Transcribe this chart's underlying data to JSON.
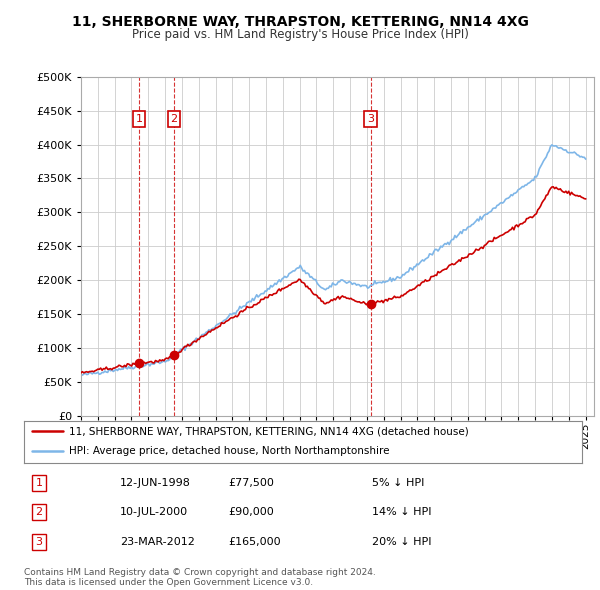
{
  "title": "11, SHERBORNE WAY, THRAPSTON, KETTERING, NN14 4XG",
  "subtitle": "Price paid vs. HM Land Registry's House Price Index (HPI)",
  "ytick_values": [
    0,
    50000,
    100000,
    150000,
    200000,
    250000,
    300000,
    350000,
    400000,
    450000,
    500000
  ],
  "ylim": [
    0,
    500000
  ],
  "xlim_start": 1995,
  "xlim_end": 2025.5,
  "hpi_color": "#7EB6E8",
  "price_color": "#CC0000",
  "background_color": "#ffffff",
  "grid_color": "#cccccc",
  "transactions": [
    {
      "year": 1998.44,
      "price": 77500,
      "label": "1"
    },
    {
      "year": 2000.52,
      "price": 90000,
      "label": "2"
    },
    {
      "year": 2012.22,
      "price": 165000,
      "label": "3"
    }
  ],
  "legend_line1": "11, SHERBORNE WAY, THRAPSTON, KETTERING, NN14 4XG (detached house)",
  "legend_line2": "HPI: Average price, detached house, North Northamptonshire",
  "footnote": "Contains HM Land Registry data © Crown copyright and database right 2024.\nThis data is licensed under the Open Government Licence v3.0.",
  "table_rows": [
    [
      "1",
      "12-JUN-1998",
      "£77,500",
      "5% ↓ HPI"
    ],
    [
      "2",
      "10-JUL-2000",
      "£90,000",
      "14% ↓ HPI"
    ],
    [
      "3",
      "23-MAR-2012",
      "£165,000",
      "20% ↓ HPI"
    ]
  ]
}
